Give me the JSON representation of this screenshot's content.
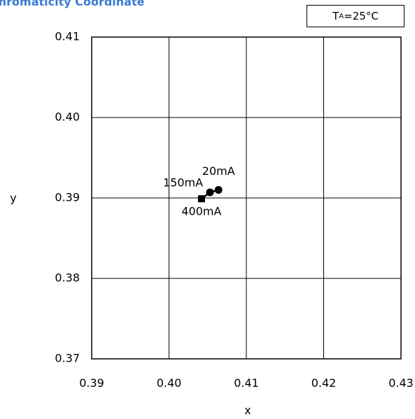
{
  "chart_data": {
    "type": "scatter",
    "title": "Chromaticity Coordinate",
    "condition": {
      "symbol": "T",
      "subscript": "A",
      "value": "=25°C"
    },
    "xlabel": "x",
    "ylabel": "y",
    "xlim": [
      0.39,
      0.43
    ],
    "ylim": [
      0.37,
      0.41
    ],
    "x_ticks": [
      0.39,
      0.4,
      0.41,
      0.42,
      0.43
    ],
    "y_ticks": [
      0.37,
      0.38,
      0.39,
      0.4,
      0.41
    ],
    "x_tick_labels": [
      "0.39",
      "0.40",
      "0.41",
      "0.42",
      "0.43"
    ],
    "y_tick_labels": [
      "0.37",
      "0.38",
      "0.39",
      "0.40",
      "0.41"
    ],
    "grid": true,
    "legend": "none",
    "series": [
      {
        "points": [
          {
            "x": 0.4064,
            "y": 0.391,
            "label": "20mA"
          },
          {
            "x": 0.4053,
            "y": 0.3907,
            "label": "150mA"
          },
          {
            "x": 0.4042,
            "y": 0.3899,
            "label": "400mA"
          }
        ],
        "color": "#000000"
      }
    ],
    "colors": {
      "title": "#3a7bd5",
      "marks": "#000000",
      "grid": "#000000"
    }
  }
}
